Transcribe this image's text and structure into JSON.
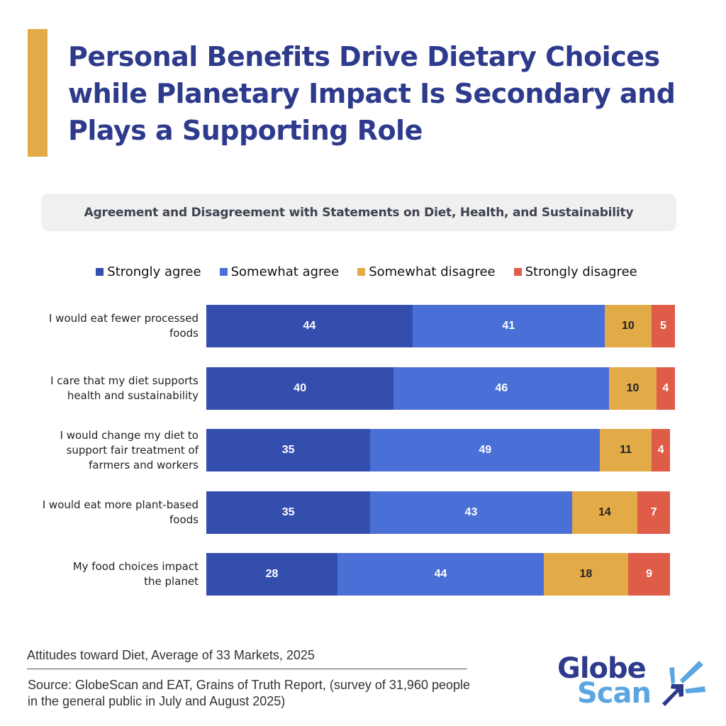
{
  "header": {
    "title": "Personal Benefits Drive Dietary Choices while Planetary Impact Is Secondary and Plays a Supporting Role",
    "accent_color": "#E3AA48",
    "title_color": "#2E3A8C"
  },
  "chart_data": {
    "type": "bar",
    "orientation": "horizontal",
    "stacked": true,
    "title": "Agreement and Disagreement with Statements on Diet, Health, and Sustainability",
    "xlabel": "",
    "ylabel": "",
    "xlim": [
      0,
      100
    ],
    "grid": false,
    "legend_position": "top-center",
    "categories": [
      "I would eat fewer processed foods",
      "I care that my diet supports health and sustainability",
      "I would change my diet to support fair treatment of farmers and workers",
      "I would eat more plant-based foods",
      "My food choices impact the planet"
    ],
    "series": [
      {
        "name": "Strongly agree",
        "color": "#344EAD",
        "label_color": "#FFFFFF",
        "values": [
          44,
          40,
          35,
          35,
          28
        ]
      },
      {
        "name": "Somewhat agree",
        "color": "#4A6FD6",
        "label_color": "#FFFFFF",
        "values": [
          41,
          46,
          49,
          43,
          44
        ]
      },
      {
        "name": "Somewhat disagree",
        "color": "#E3AA48",
        "label_color": "#222222",
        "values": [
          10,
          10,
          11,
          14,
          18
        ]
      },
      {
        "name": "Strongly disagree",
        "color": "#DE5C48",
        "label_color": "#FFFFFF",
        "values": [
          5,
          4,
          4,
          7,
          9
        ]
      }
    ]
  },
  "footer": {
    "caption": "Attitudes toward Diet, Average of 33 Markets, 2025",
    "source": "Source: GlobeScan and EAT, Grains of Truth Report, (survey of 31,960 people in the general public in July and August 2025)"
  },
  "logo": {
    "line1": "Globe",
    "line2": "Scan",
    "icon": "burst-arrow-icon",
    "color_dark": "#2E3A8C",
    "color_light": "#5BA6E0"
  }
}
